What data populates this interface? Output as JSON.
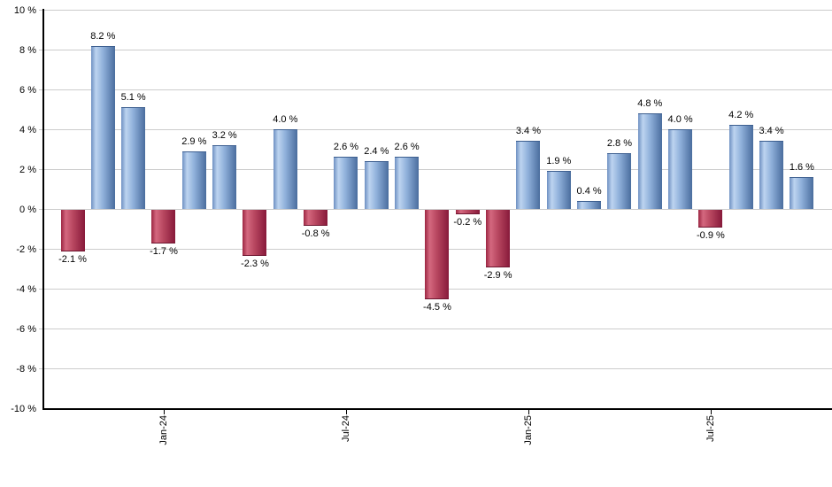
{
  "chart_data": {
    "type": "bar",
    "title": "",
    "unit": "%",
    "grid": true,
    "legend": false,
    "y_axis": {
      "min": -10,
      "max": 10,
      "step": 2,
      "ticks": [
        {
          "value": 10,
          "label": "10 %"
        },
        {
          "value": 8,
          "label": "8 %"
        },
        {
          "value": 6,
          "label": "6 %"
        },
        {
          "value": 4,
          "label": "4 %"
        },
        {
          "value": 2,
          "label": "2 %"
        },
        {
          "value": 0,
          "label": "0 %"
        },
        {
          "value": -2,
          "label": "-2 %"
        },
        {
          "value": -4,
          "label": "-4 %"
        },
        {
          "value": -6,
          "label": "-6 %"
        },
        {
          "value": -8,
          "label": "-8 %"
        },
        {
          "value": -10,
          "label": "-10 %"
        }
      ]
    },
    "x_axis": {
      "ticks": [
        {
          "label": "Jan-24",
          "bar_index": 3
        },
        {
          "label": "Jul-24",
          "bar_index": 9
        },
        {
          "label": "Jan-25",
          "bar_index": 15
        },
        {
          "label": "Jul-25",
          "bar_index": 21
        }
      ]
    },
    "bars": [
      {
        "value": -2.1,
        "label": "-2.1 %"
      },
      {
        "value": 8.2,
        "label": "8.2 %"
      },
      {
        "value": 5.1,
        "label": "5.1 %"
      },
      {
        "value": -1.7,
        "label": "-1.7 %"
      },
      {
        "value": 2.9,
        "label": "2.9 %"
      },
      {
        "value": 3.2,
        "label": "3.2 %"
      },
      {
        "value": -2.3,
        "label": "-2.3 %"
      },
      {
        "value": 4.0,
        "label": "4.0 %"
      },
      {
        "value": -0.8,
        "label": "-0.8 %"
      },
      {
        "value": 2.6,
        "label": "2.6 %"
      },
      {
        "value": 2.4,
        "label": "2.4 %"
      },
      {
        "value": 2.6,
        "label": "2.6 %"
      },
      {
        "value": -4.5,
        "label": "-4.5 %"
      },
      {
        "value": -0.2,
        "label": "-0.2 %"
      },
      {
        "value": -2.9,
        "label": "-2.9 %"
      },
      {
        "value": 3.4,
        "label": "3.4 %"
      },
      {
        "value": 1.9,
        "label": "1.9 %"
      },
      {
        "value": 0.4,
        "label": "0.4 %"
      },
      {
        "value": 2.8,
        "label": "2.8 %"
      },
      {
        "value": 4.8,
        "label": "4.8 %"
      },
      {
        "value": 4.0,
        "label": "4.0 %"
      },
      {
        "value": -0.9,
        "label": "-0.9 %"
      },
      {
        "value": 4.2,
        "label": "4.2 %"
      },
      {
        "value": 3.4,
        "label": "3.4 %"
      },
      {
        "value": 1.6,
        "label": "1.6 %"
      }
    ],
    "colors": {
      "positive_bar_left": "#6e90c2",
      "positive_bar_highlight": "#bdd4f0",
      "positive_bar_mid": "#8fb0da",
      "positive_bar_right": "#4a6d9e",
      "negative_bar_left": "#9c2642",
      "negative_bar_highlight": "#d4687f",
      "negative_bar_mid": "#b84760",
      "negative_bar_right": "#87193a",
      "gridline": "#cccccc",
      "axis": "#000000",
      "text": "#000000"
    }
  }
}
